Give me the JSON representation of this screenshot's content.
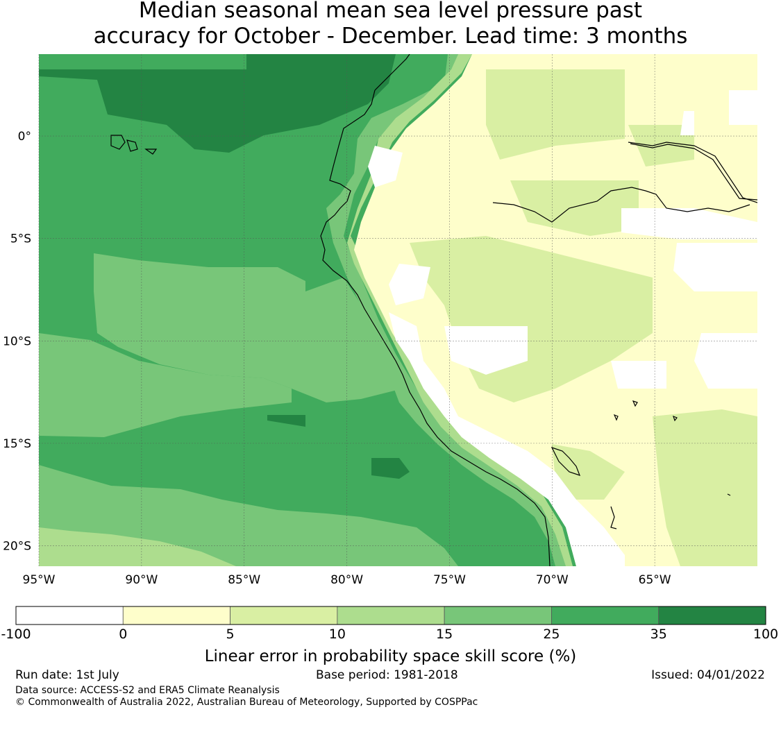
{
  "title": {
    "line1": "Median seasonal mean sea level pressure past",
    "line2": "accuracy for October - December. Lead time: 3 months"
  },
  "map": {
    "lon_range": [
      -95,
      -60
    ],
    "lat_range": [
      -21,
      4
    ],
    "lon_ticks": [
      "95°W",
      "90°W",
      "85°W",
      "80°W",
      "75°W",
      "70°W",
      "65°W"
    ],
    "lat_ticks": [
      "0°",
      "5°S",
      "10°S",
      "15°S",
      "20°S"
    ],
    "gridlines": true
  },
  "colorbar": {
    "boundaries": [
      "-100",
      "0",
      "5",
      "10",
      "15",
      "25",
      "35",
      "100"
    ],
    "colors": [
      "#ffffff",
      "#fefecb",
      "#d9efa3",
      "#addd8e",
      "#78c679",
      "#41ab5d",
      "#238443"
    ],
    "label": "Linear error in probability space skill score (%)"
  },
  "footer": {
    "run_date": "Run date: 1st July",
    "base_period": "Base period: 1981-2018",
    "issued": "Issued: 04/01/2022",
    "data_source": "Data source: ACCESS-S2 and ERA5 Climate Reanalysis",
    "copyright": "© Commonwealth of Australia 2022, Australian Bureau of Meteorology, Supported by COSPPac"
  }
}
